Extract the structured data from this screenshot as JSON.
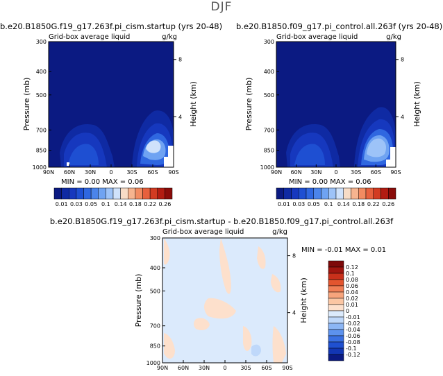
{
  "page": {
    "title": "DJF"
  },
  "palettes": {
    "abs": [
      "#0b1a82",
      "#0f2aa3",
      "#1638be",
      "#1e4fd2",
      "#2f67e0",
      "#4b84ea",
      "#6fa3f2",
      "#9dc3f8",
      "#cfe2fb",
      "#f7dcc6",
      "#f6b48f",
      "#f28b61",
      "#e7603d",
      "#d23b22",
      "#b21c12",
      "#8a0c0a"
    ],
    "diff": [
      "#0b1a82",
      "#1236b3",
      "#1f50d0",
      "#3a70e2",
      "#5d92ee",
      "#8cb6f5",
      "#bfd8fa",
      "#dbeafc",
      "#fde0cc",
      "#fbc6a3",
      "#f7a47c",
      "#f17f56",
      "#e3552f",
      "#c9301b",
      "#a0150f",
      "#7d0909"
    ]
  },
  "chart_data": [
    {
      "id": "panel1",
      "type": "heatmap",
      "title": "b.e20.B1850G.f19_g17.263f.pi_cism.startup (yrs 20-48)",
      "subtitle_left": "Grid-box average liquid",
      "subtitle_right": "g/kg",
      "ylabel": "Pressure (mb)",
      "y2label": "Height (km)",
      "x_ticks": [
        "90N",
        "60N",
        "30N",
        "0",
        "30S",
        "60S",
        "90S"
      ],
      "y_ticks": [
        300,
        400,
        500,
        700,
        850,
        1000
      ],
      "y2_ticks": [
        8,
        4
      ],
      "minmax_text": "MIN =    0.00   MAX =    0.06",
      "colorbar_labels": [
        "0.01",
        "0.03",
        "0.05",
        "0.1",
        "0.14",
        "0.18",
        "0.22",
        "0.26"
      ],
      "colorbar_levels": [
        "0.01",
        "0.02",
        "0.03",
        "0.04",
        "0.05",
        "0.06",
        "0.08",
        "0.1",
        "0.12",
        "0.14",
        "0.16",
        "0.18",
        "0.2",
        "0.22",
        "0.24",
        "0.26"
      ]
    },
    {
      "id": "panel2",
      "type": "heatmap",
      "title": "b.e20.B1850.f09_g17.pi_control.all.263f (yrs 20-48)",
      "subtitle_left": "Grid-box average liquid",
      "subtitle_right": "g/kg",
      "ylabel": "Pressure (mb)",
      "y2label": "Height (km)",
      "x_ticks": [
        "90N",
        "60N",
        "30N",
        "0",
        "30S",
        "60S",
        "90S"
      ],
      "y_ticks": [
        300,
        400,
        500,
        700,
        850,
        1000
      ],
      "y2_ticks": [
        8,
        4
      ],
      "minmax_text": "MIN =    0.00   MAX =    0.06",
      "colorbar_labels": [
        "0.01",
        "0.03",
        "0.05",
        "0.1",
        "0.14",
        "0.18",
        "0.22",
        "0.26"
      ]
    },
    {
      "id": "panel3",
      "type": "heatmap",
      "title": "b.e20.B1850G.f19_g17.263f.pi_cism.startup - b.e20.B1850.f09_g17.pi_control.all.263f",
      "subtitle_left": "Grid-box average liquid",
      "subtitle_right": "g/kg",
      "ylabel": "Pressure (mb)",
      "y2label": "Height (km)",
      "x_ticks": [
        "90N",
        "60N",
        "30N",
        "0",
        "30S",
        "60S",
        "90S"
      ],
      "y_ticks": [
        300,
        400,
        500,
        700,
        850,
        1000
      ],
      "y2_ticks": [
        8,
        4
      ],
      "minmax_text": "MIN =   -0.01   MAX =    0.01",
      "colorbar_labels": [
        "0.12",
        "0.1",
        "0.08",
        "0.06",
        "0.04",
        "0.02",
        "0.01",
        "0",
        "-0.01",
        "-0.02",
        "-0.04",
        "-0.06",
        "-0.08",
        "-0.1",
        "-0.12"
      ]
    }
  ]
}
